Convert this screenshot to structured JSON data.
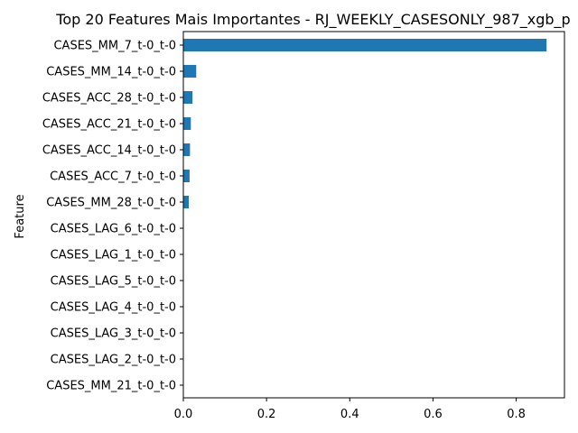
{
  "chart_data": {
    "type": "bar",
    "orientation": "horizontal",
    "title": "Top 20 Features Mais Importantes - RJ_WEEKLY_CASESONLY_987_xgb_p",
    "xlabel": "",
    "ylabel": "Feature",
    "categories": [
      "CASES_MM_7_t-0_t-0",
      "CASES_MM_14_t-0_t-0",
      "CASES_ACC_28_t-0_t-0",
      "CASES_ACC_21_t-0_t-0",
      "CASES_ACC_14_t-0_t-0",
      "CASES_ACC_7_t-0_t-0",
      "CASES_MM_28_t-0_t-0",
      "CASES_LAG_6_t-0_t-0",
      "CASES_LAG_1_t-0_t-0",
      "CASES_LAG_5_t-0_t-0",
      "CASES_LAG_4_t-0_t-0",
      "CASES_LAG_3_t-0_t-0",
      "CASES_LAG_2_t-0_t-0",
      "CASES_MM_21_t-0_t-0"
    ],
    "values": [
      0.873,
      0.031,
      0.022,
      0.018,
      0.016,
      0.015,
      0.013,
      0,
      0,
      0,
      0,
      0,
      0,
      0
    ],
    "xlim": [
      0,
      0.916
    ],
    "xticks": [
      0.0,
      0.2,
      0.4,
      0.6,
      0.8
    ],
    "xtick_labels": [
      "0.0",
      "0.2",
      "0.4",
      "0.6",
      "0.8"
    ],
    "bar_color": "#1f77b4",
    "grid": false,
    "legend": "none"
  }
}
